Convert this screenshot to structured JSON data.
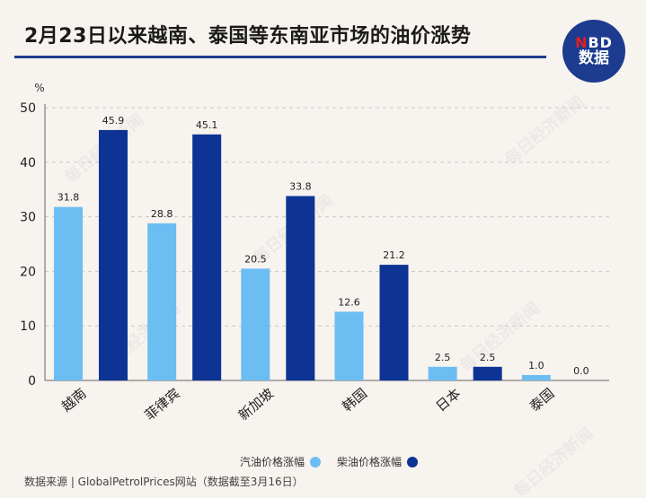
{
  "header": {
    "title": "2月23日以来越南、泰国等东南亚市场的油价涨势",
    "logo_line1": "NBD",
    "logo_line2": "数据",
    "colors": {
      "brand": "#1d3b8f",
      "logo_accent": "#e02020"
    }
  },
  "watermark": "每日经济新闻",
  "chart_data": {
    "type": "bar",
    "title": "2月23日以来越南、泰国等东南亚市场的油价涨势",
    "ylabel": "%",
    "xlabel": "",
    "ylim": [
      0,
      50
    ],
    "yticks": [
      0,
      10,
      20,
      30,
      40,
      50
    ],
    "grid": true,
    "legend_position": "bottom",
    "categories": [
      "越南",
      "菲律宾",
      "新加坡",
      "韩国",
      "日本",
      "泰国"
    ],
    "series": [
      {
        "name": "汽油价格涨幅",
        "color": "#6cbdf2",
        "values": [
          31.8,
          28.8,
          20.5,
          12.6,
          2.5,
          1.0
        ]
      },
      {
        "name": "柴油价格涨幅",
        "color": "#0d3495",
        "values": [
          45.9,
          45.1,
          33.8,
          21.2,
          2.5,
          0.0
        ]
      }
    ]
  },
  "footer": {
    "source": "数据来源 | GlobalPetrolPrices网站（数据截至3月16日）"
  }
}
